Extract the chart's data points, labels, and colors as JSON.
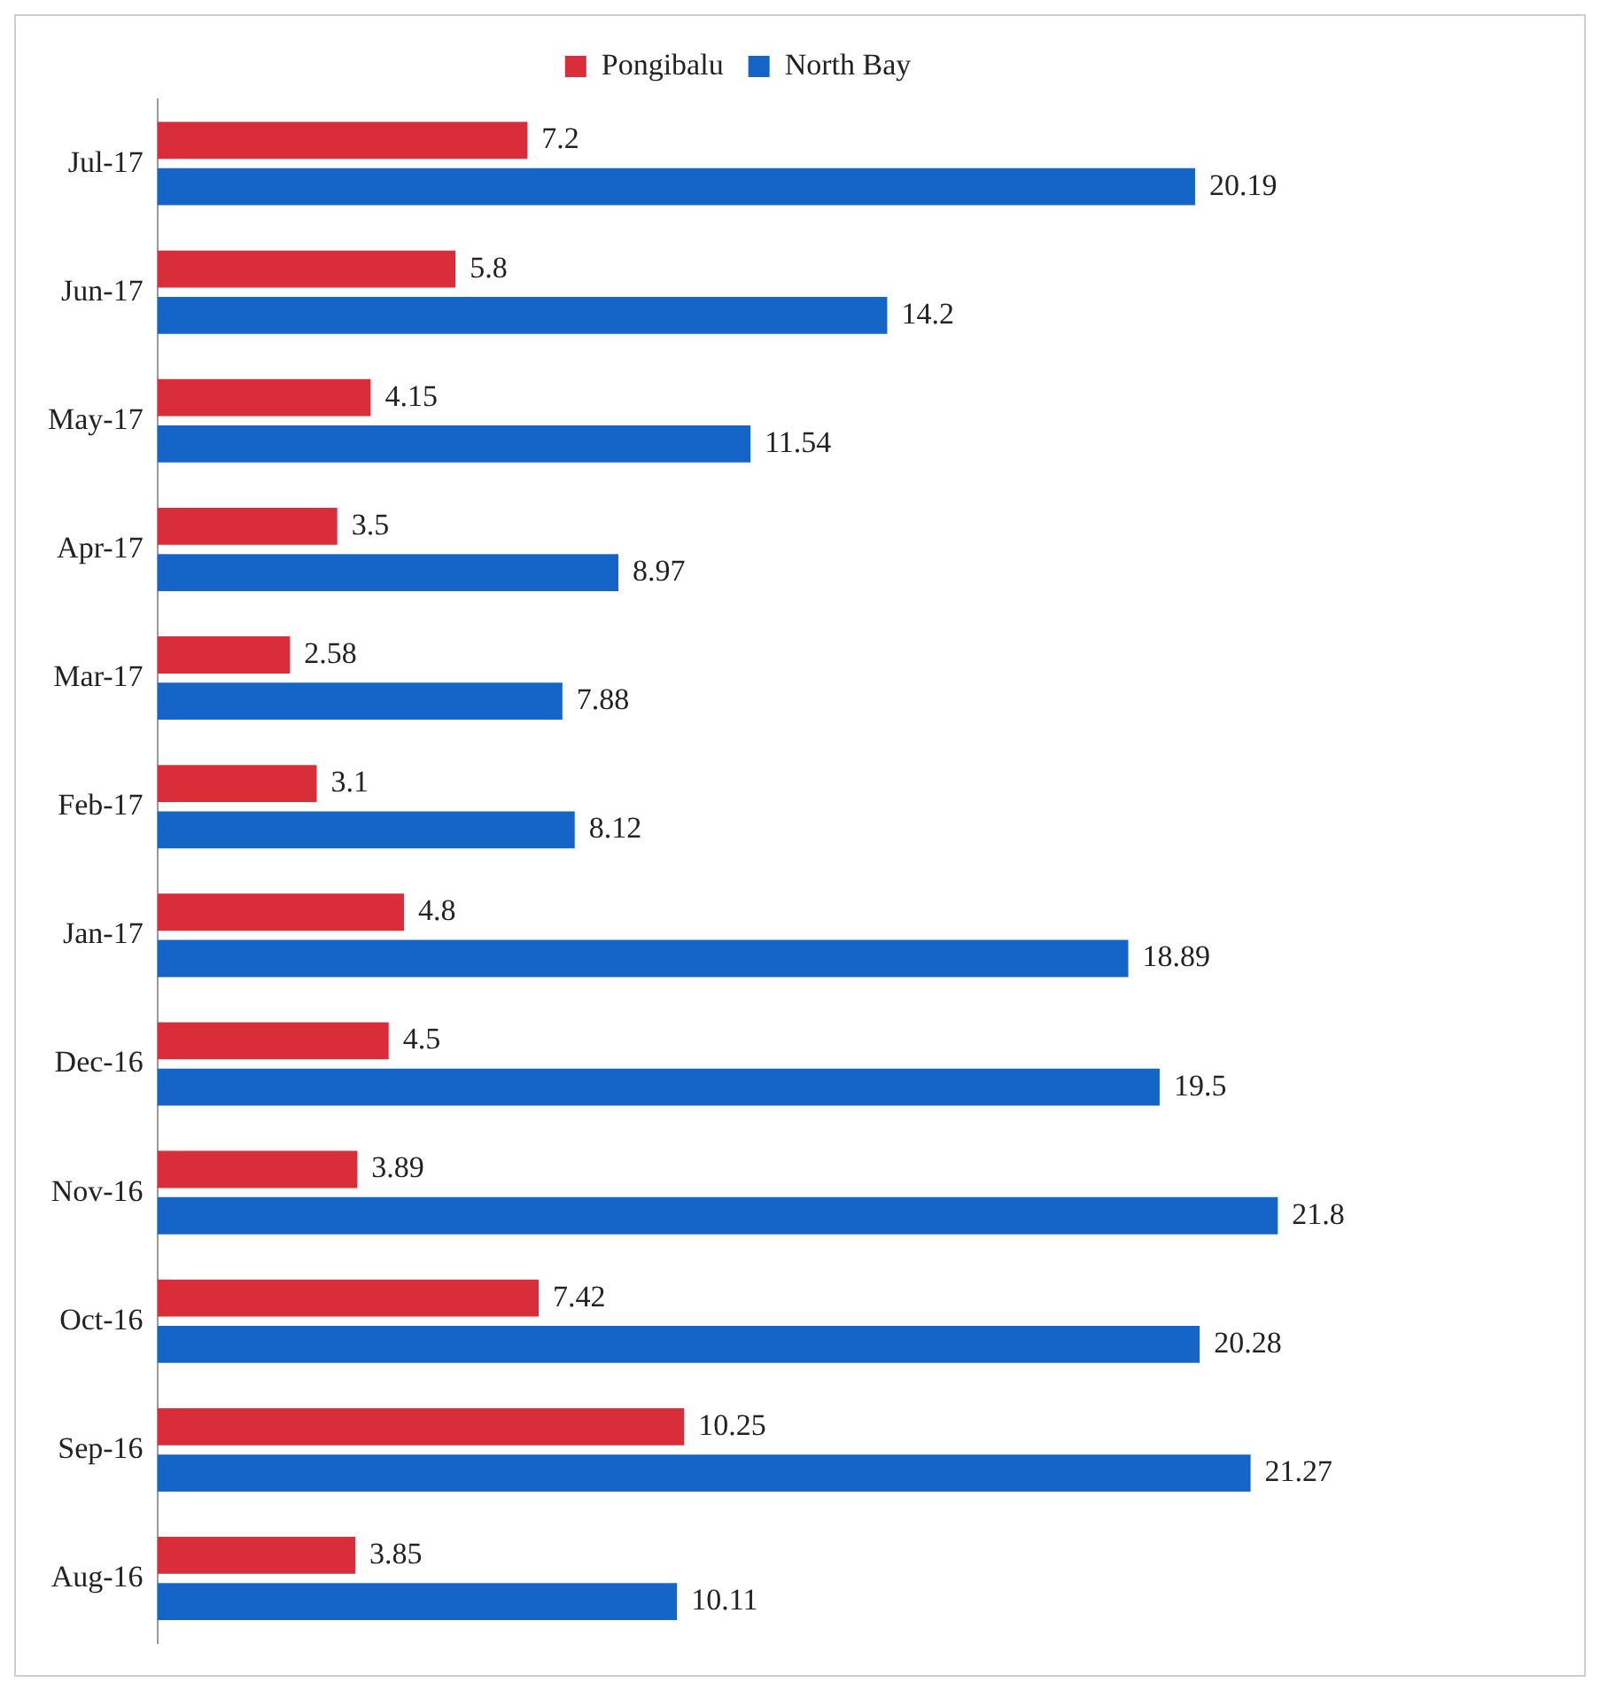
{
  "chart_data": {
    "type": "bar",
    "orientation": "horizontal",
    "legend": "top",
    "data_labels": true,
    "categories": [
      "Jul-17",
      "Jun-17",
      "May-17",
      "Apr-17",
      "Mar-17",
      "Feb-17",
      "Jan-17",
      "Dec-16",
      "Nov-16",
      "Oct-16",
      "Sep-16",
      "Aug-16"
    ],
    "series": [
      {
        "name": "Pongibalu",
        "color": "#d92d3a",
        "values": [
          7.2,
          5.8,
          4.15,
          3.5,
          2.58,
          3.1,
          4.8,
          4.5,
          3.89,
          7.42,
          10.25,
          3.85
        ]
      },
      {
        "name": "North Bay",
        "color": "#1565c8",
        "values": [
          20.19,
          14.2,
          11.54,
          8.97,
          7.88,
          8.12,
          18.89,
          19.5,
          21.8,
          20.28,
          21.27,
          10.11
        ]
      }
    ]
  }
}
